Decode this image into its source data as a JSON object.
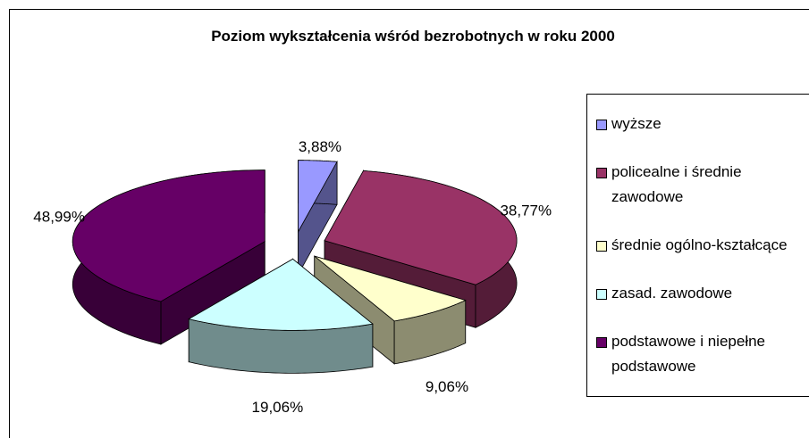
{
  "chart_data": {
    "type": "pie",
    "title": "Poziom wykształcenia wśród bezrobotnych w roku 2000",
    "categories": [
      "wyższe",
      "policealne i średnie zawodowe",
      "średnie ogólno-kształcące",
      "zasad. zawodowe",
      "podstawowe i niepełne podstawowe"
    ],
    "values": [
      3.88,
      38.77,
      9.06,
      19.06,
      48.99
    ],
    "value_labels": [
      "3,88%",
      "38,77%",
      "9,06%",
      "19,06%",
      "48,99%"
    ],
    "colors": [
      "#9999ff",
      "#993366",
      "#ffffcc",
      "#ccffff",
      "#660066"
    ],
    "legend": "right"
  }
}
